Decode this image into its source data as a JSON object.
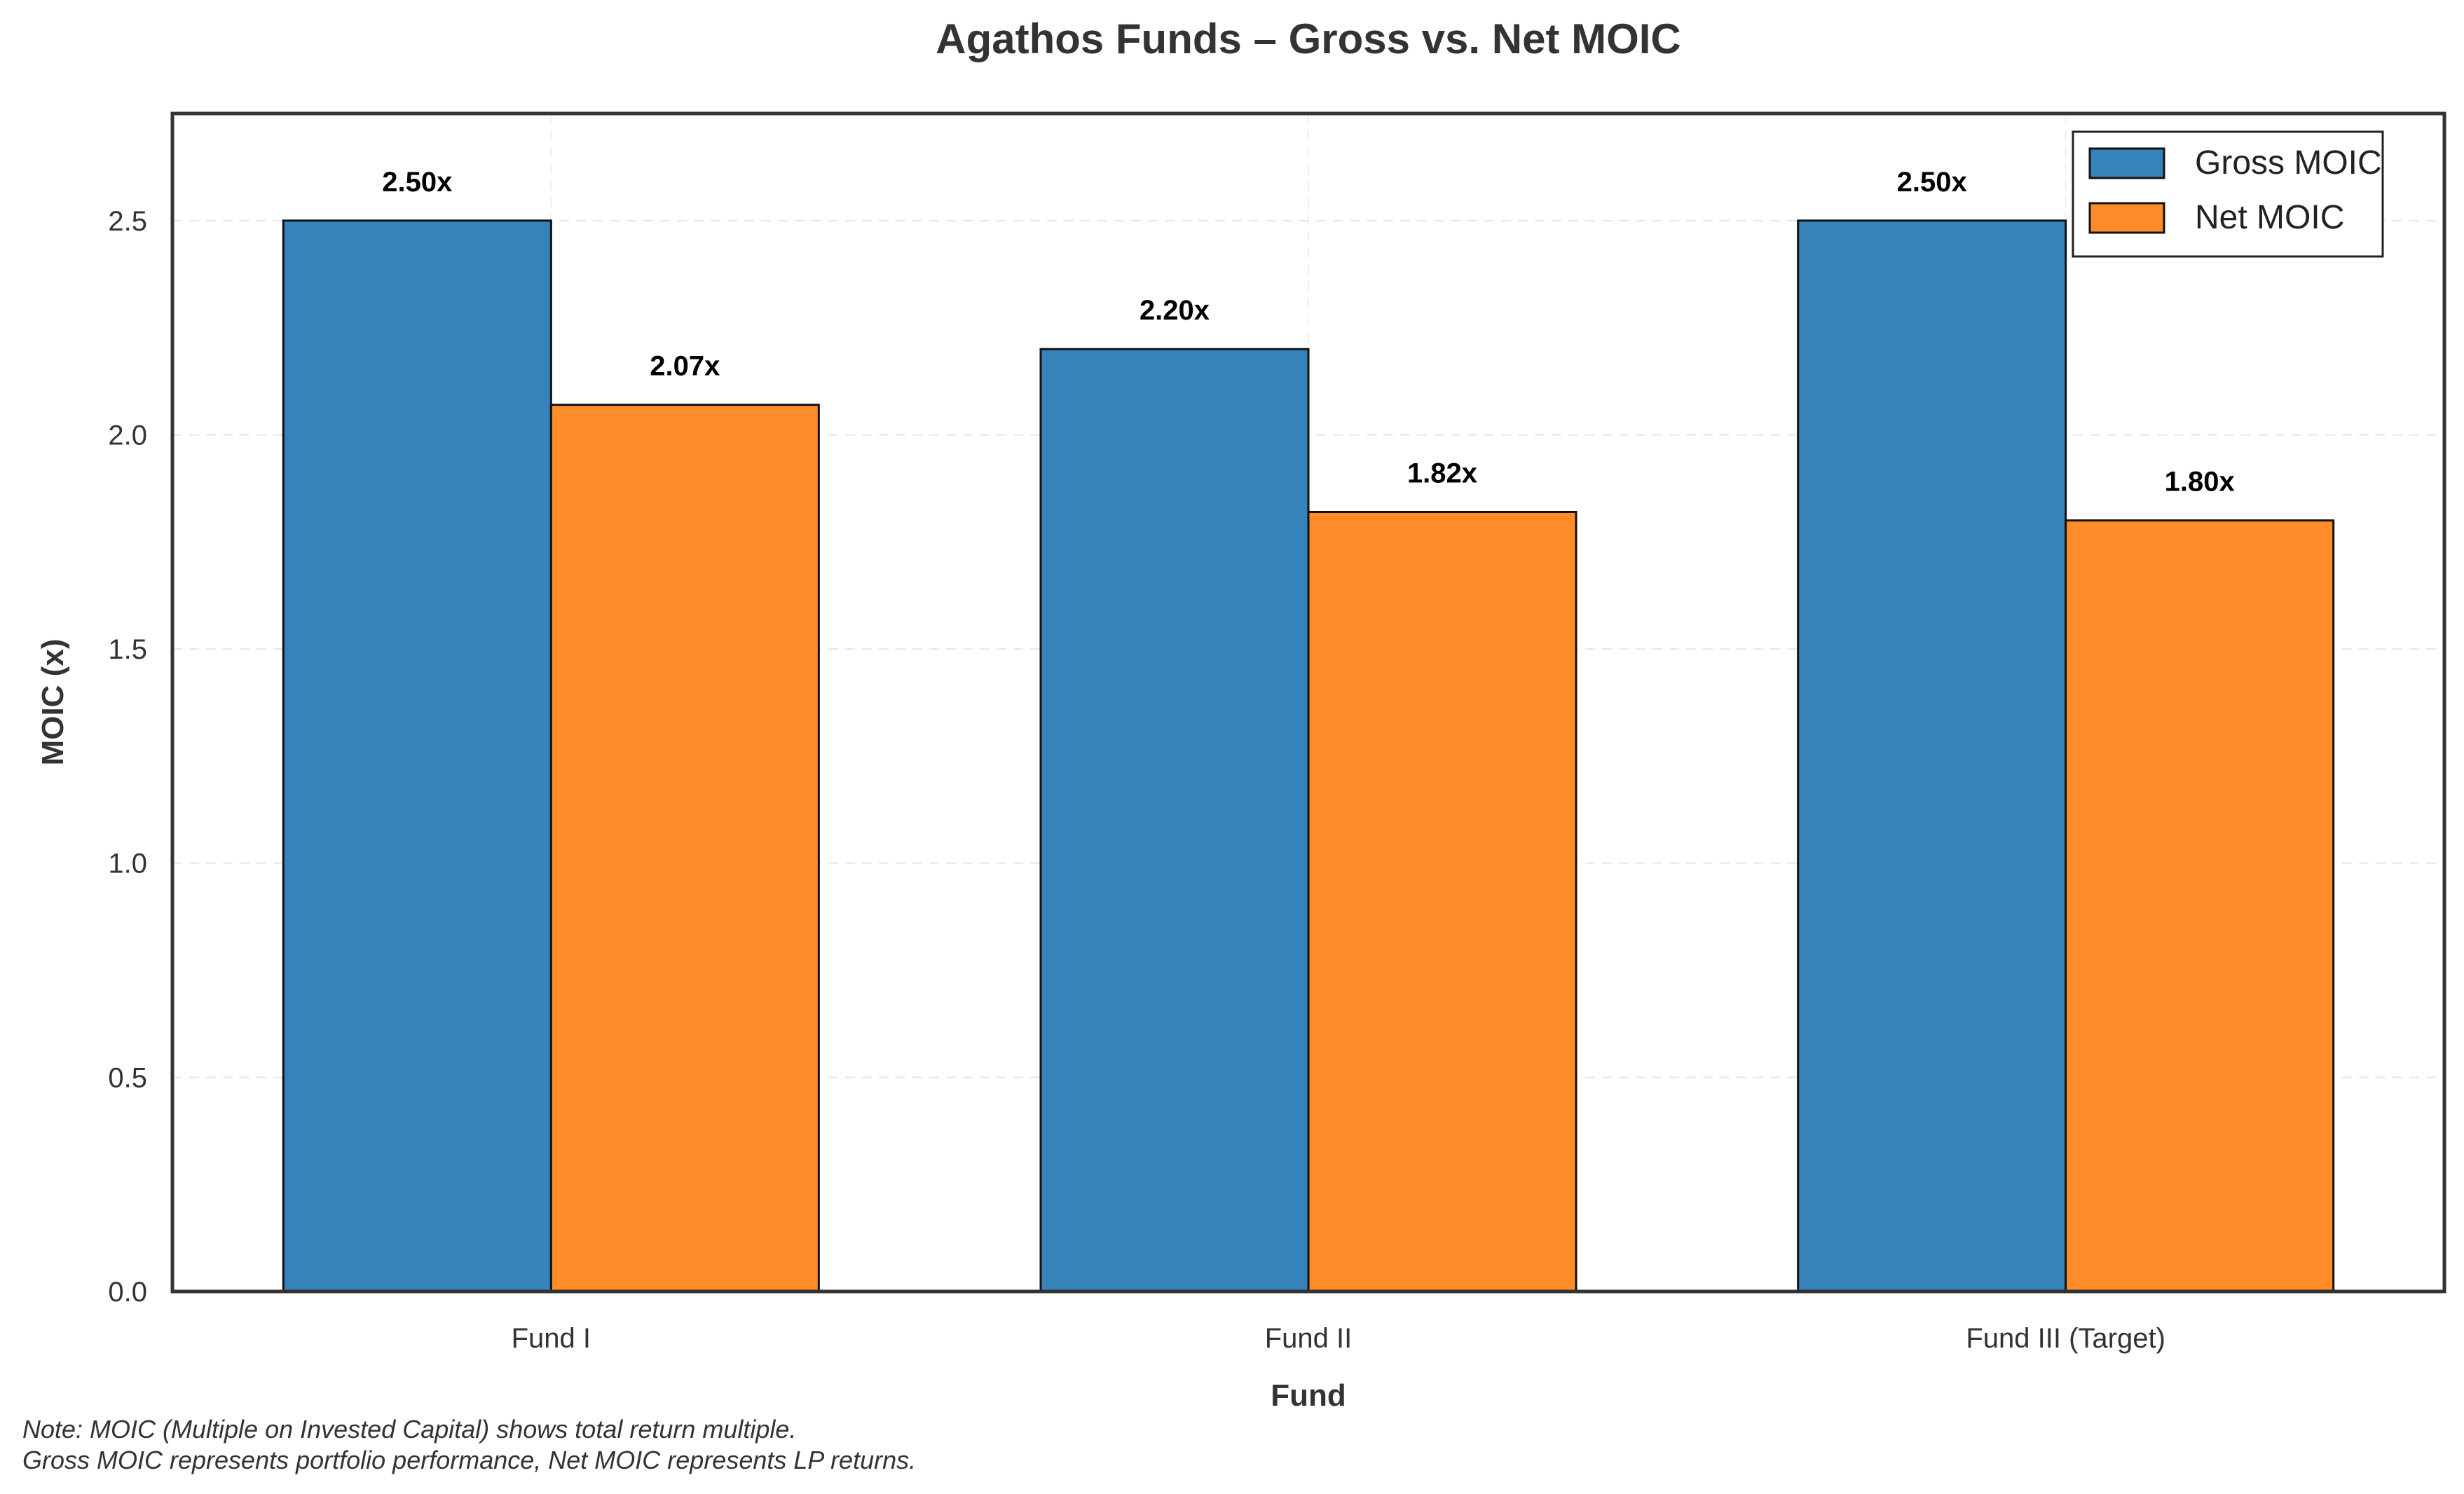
{
  "chart_data": {
    "type": "bar",
    "title": "Agathos Funds – Gross vs. Net MOIC",
    "xlabel": "Fund",
    "ylabel": "MOIC (x)",
    "categories": [
      "Fund I",
      "Fund II",
      "Fund III (Target)"
    ],
    "series": [
      {
        "name": "Gross MOIC",
        "values": [
          2.5,
          2.2,
          2.5
        ],
        "labels": [
          "2.50x",
          "2.20x",
          "2.50x"
        ],
        "color": "#3682BA"
      },
      {
        "name": "Net MOIC",
        "values": [
          2.07,
          1.82,
          1.8
        ],
        "labels": [
          "2.07x",
          "1.82x",
          "1.80x"
        ],
        "color": "#FF8B29"
      }
    ],
    "ylim": [
      0,
      2.75
    ],
    "yticks": [
      0.0,
      0.5,
      1.0,
      1.5,
      2.0,
      2.5
    ],
    "ytick_labels": [
      "0.0",
      "0.5",
      "1.0",
      "1.5",
      "2.0",
      "2.5"
    ],
    "grid": true,
    "legend_position": "top-right"
  },
  "notes": {
    "line1": "Note: MOIC (Multiple on Invested Capital) shows total return multiple.",
    "line2": "Gross MOIC represents portfolio performance, Net MOIC represents LP returns."
  }
}
